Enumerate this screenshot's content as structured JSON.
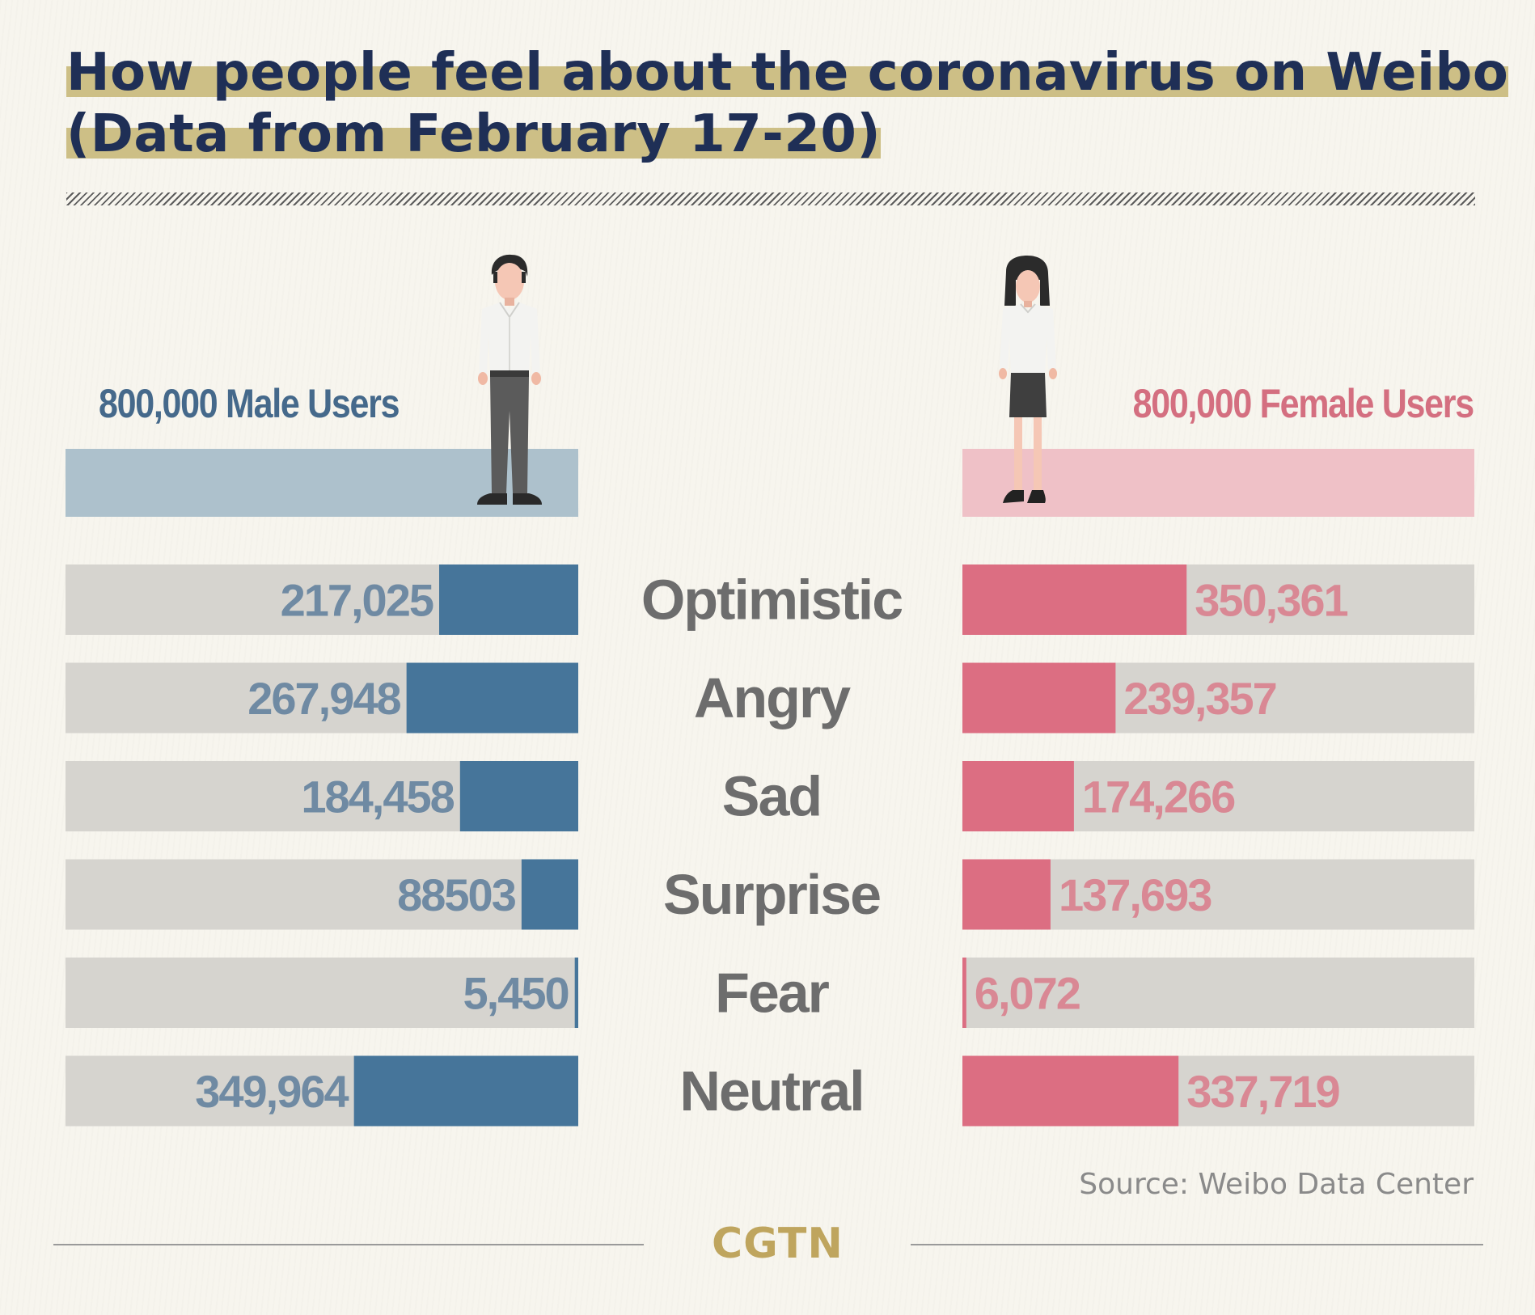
{
  "chart_data": {
    "type": "bar",
    "title": "How people feel about the coronavirus on Weibo\n(Data from February 17-20)",
    "title_lines": [
      "How people feel about the coronavirus on Weibo",
      "(Data from February 17-20)"
    ],
    "categories": [
      "Optimistic",
      "Angry",
      "Sad",
      "Surprise",
      "Fear",
      "Neutral"
    ],
    "series": [
      {
        "name": "800,000 Male Users",
        "values": [
          217025,
          267948,
          184458,
          88503,
          5450,
          349964
        ],
        "labels": [
          "217,025",
          "267,948",
          "184,458",
          "88503",
          "5,450",
          "349,964"
        ],
        "color": "#46759a",
        "label_color": "#6f8aa3",
        "direction": "leftward"
      },
      {
        "name": "800,000 Female Users",
        "values": [
          350361,
          239357,
          174266,
          137693,
          6072,
          337719
        ],
        "labels": [
          "350,361",
          "239,357",
          "174,266",
          "137,693",
          "6,072",
          "337,719"
        ],
        "color": "#dc6e82",
        "label_color": "#d98894",
        "direction": "rightward"
      }
    ],
    "track_color": "#d6d4cf",
    "legend": "above-bars",
    "grid": false,
    "source": "Source: Weibo Data Center"
  },
  "male_label": "800,000 Male Users",
  "female_label": "800,000 Female Users",
  "logo": "CGTN",
  "colors": {
    "title": "#1f2f56",
    "title_highlight": "#cdbf86",
    "male": "#46759a",
    "female": "#dc6e82",
    "male_floor": "#adc1cc",
    "female_floor": "#efc1c7",
    "category_text": "#6d6d6d",
    "logo": "#bfa55e"
  }
}
